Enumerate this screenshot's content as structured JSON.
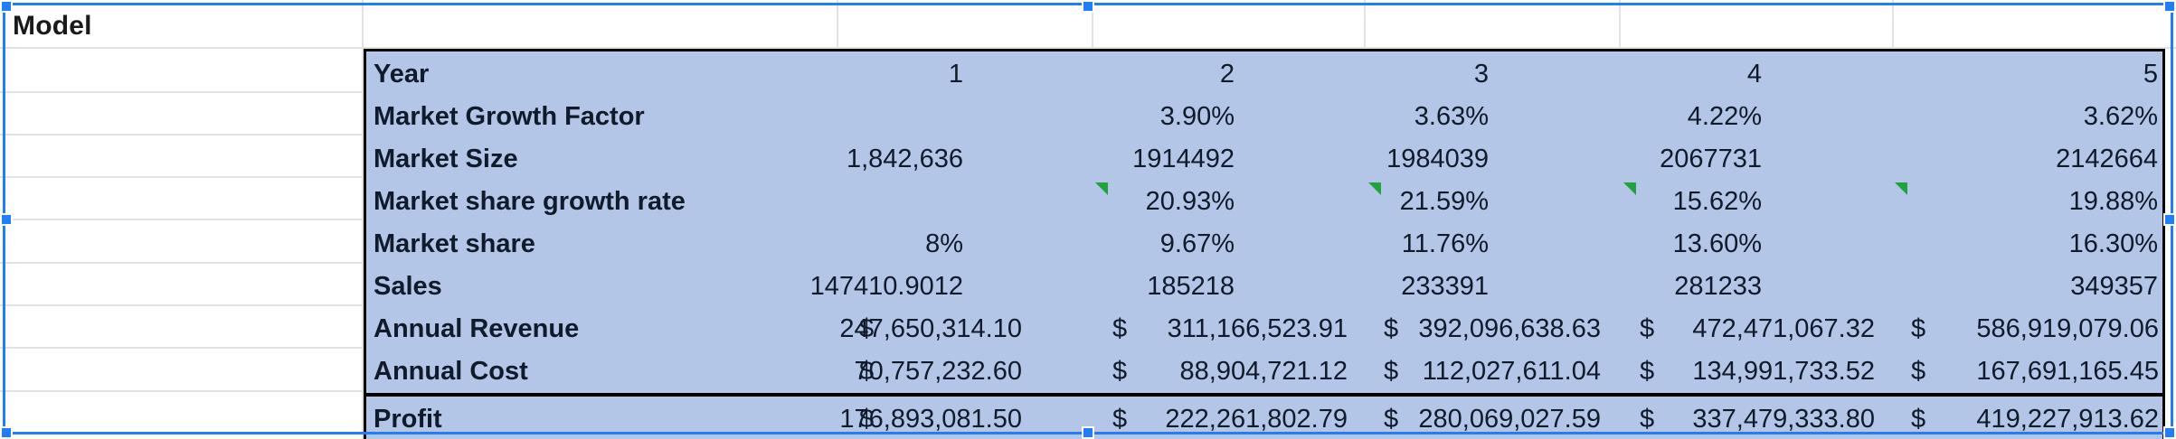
{
  "sheet": {
    "model_label": "Model"
  },
  "table": {
    "rows": [
      {
        "label": "Year",
        "values": [
          "1",
          "2",
          "3",
          "4",
          "5"
        ]
      },
      {
        "label": "Market Growth Factor",
        "values": [
          "",
          "3.90%",
          "3.63%",
          "4.22%",
          "3.62%"
        ]
      },
      {
        "label": "Market Size",
        "values": [
          "1,842,636",
          "1914492",
          "1984039",
          "2067731",
          "2142664"
        ]
      },
      {
        "label": "Market share growth rate",
        "values": [
          "",
          "20.93%",
          "21.59%",
          "15.62%",
          "19.88%"
        ]
      },
      {
        "label": "Market share",
        "values": [
          "8%",
          "9.67%",
          "11.76%",
          "13.60%",
          "16.30%"
        ]
      },
      {
        "label": "Sales",
        "values": [
          "147410.9012",
          "185218",
          "233391",
          "281233",
          "349357"
        ]
      }
    ],
    "currency_rows": [
      {
        "label": "Annual Revenue",
        "symbol": "$",
        "values": [
          "247,650,314.10",
          "311,166,523.91",
          "392,096,638.63",
          "472,471,067.32",
          "586,919,079.06"
        ]
      },
      {
        "label": "Annual Cost",
        "symbol": "$",
        "values": [
          "70,757,232.60",
          "88,904,721.12",
          "112,027,611.04",
          "134,991,733.52",
          "167,691,165.45"
        ]
      },
      {
        "label": "Profit",
        "symbol": "$",
        "values": [
          "176,893,081.50",
          "222,261,802.79",
          "280,069,027.59",
          "337,479,333.80",
          "419,227,913.62"
        ]
      }
    ]
  },
  "colors": {
    "table_fill": "#b4c6e7",
    "selection": "#217ef6",
    "comment_flag": "#21a33b",
    "gridline": "#e2e2e2"
  }
}
